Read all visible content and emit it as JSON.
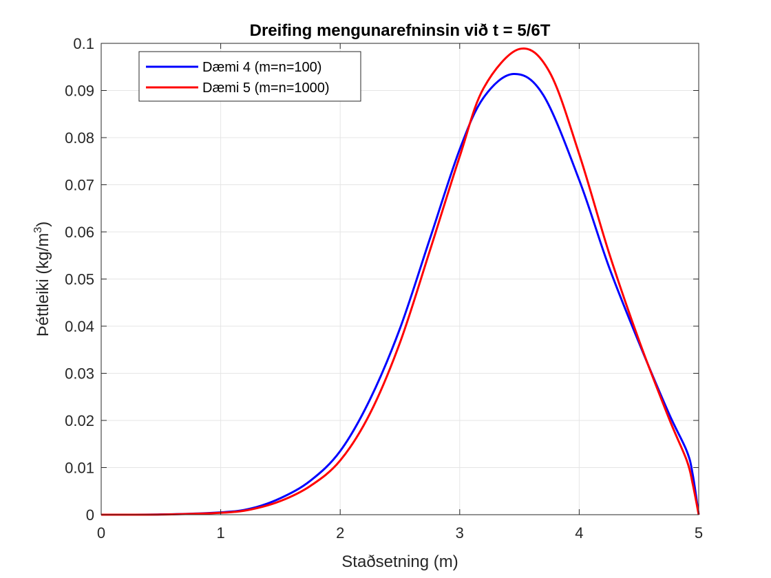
{
  "chart_data": {
    "type": "line",
    "title": "Dreifing mengunarefninsin við t = 5/6T",
    "xlabel": "Staðsetning (m)",
    "ylabel": "Þéttleiki (kg/m",
    "ylabel_superscript": "3",
    "ylabel_close": ")",
    "xlim": [
      0,
      5
    ],
    "ylim": [
      0,
      0.1
    ],
    "xticks": [
      "0",
      "1",
      "2",
      "3",
      "4",
      "5"
    ],
    "yticks": [
      "0",
      "0.01",
      "0.02",
      "0.03",
      "0.04",
      "0.05",
      "0.06",
      "0.07",
      "0.08",
      "0.09",
      "0.1"
    ],
    "grid": true,
    "legend_position": "top-left",
    "series": [
      {
        "name": "Dæmi 4 (m=n=100)",
        "color": "#0000ff",
        "x": [
          0,
          0.5,
          1.0,
          1.25,
          1.5,
          1.75,
          2.0,
          2.25,
          2.5,
          2.75,
          3.0,
          3.2,
          3.45,
          3.7,
          4.0,
          4.25,
          4.5,
          4.75,
          4.9,
          4.95,
          5.0
        ],
        "y": [
          0,
          5e-05,
          0.0005,
          0.0013,
          0.0035,
          0.0072,
          0.0135,
          0.0245,
          0.0395,
          0.0585,
          0.0775,
          0.0885,
          0.0935,
          0.089,
          0.071,
          0.0525,
          0.0365,
          0.0215,
          0.0135,
          0.0085,
          0
        ]
      },
      {
        "name": "Dæmi 5 (m=n=1000)",
        "color": "#ff0000",
        "x": [
          0,
          0.5,
          1.0,
          1.25,
          1.5,
          1.75,
          2.0,
          2.25,
          2.5,
          2.75,
          3.0,
          3.2,
          3.5,
          3.75,
          4.0,
          4.25,
          4.5,
          4.75,
          4.9,
          4.95,
          5.0
        ],
        "y": [
          0,
          4e-05,
          0.0004,
          0.0011,
          0.0029,
          0.0061,
          0.0115,
          0.0215,
          0.0365,
          0.056,
          0.076,
          0.0905,
          0.0988,
          0.094,
          0.0765,
          0.0555,
          0.037,
          0.0205,
          0.0115,
          0.0065,
          0
        ]
      }
    ]
  }
}
